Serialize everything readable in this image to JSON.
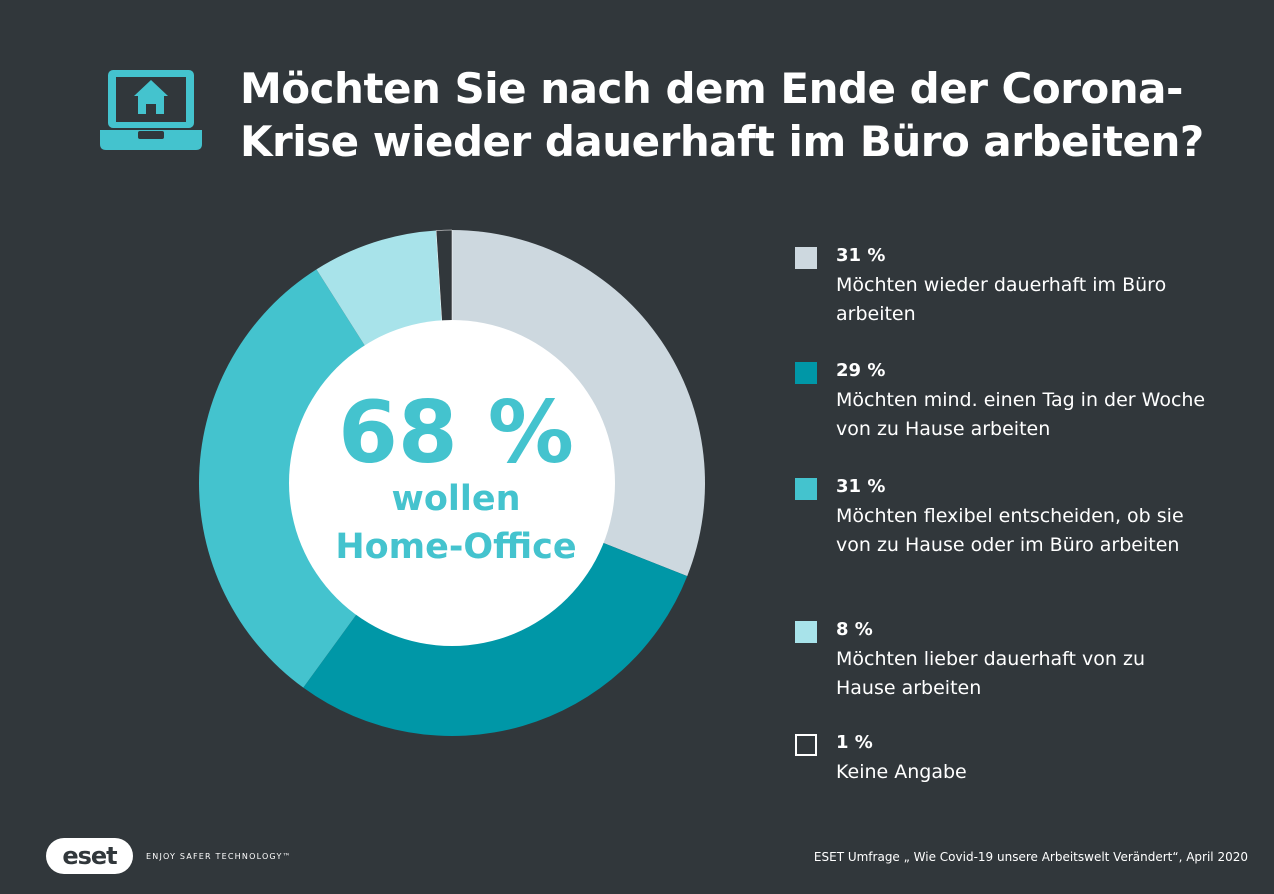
{
  "header": {
    "title_line1": "Möchten Sie nach dem Ende der Corona-",
    "title_line2": "Krise wieder dauerhaft im Büro arbeiten?",
    "icon": "laptop-home-icon"
  },
  "center": {
    "value": "68 %",
    "line1": "wollen",
    "line2": "Home-Office"
  },
  "colors": {
    "background": "#31373b",
    "accent": "#44c3ce"
  },
  "chart_data": {
    "type": "pie",
    "title": "Möchten Sie nach dem Ende der Corona-Krise wieder dauerhaft im Büro arbeiten?",
    "legend_position": "right",
    "slices": [
      {
        "pct_label": "31 %",
        "value": 31,
        "label": "Möchten wieder dauerhaft im Büro arbeiten",
        "color": "#cdd8df",
        "outline": false
      },
      {
        "pct_label": "29 %",
        "value": 29,
        "label": "Möchten mind. einen Tag in der Woche von zu Hause arbeiten",
        "color": "#0097a7",
        "outline": false
      },
      {
        "pct_label": "31 %",
        "value": 31,
        "label": "Möchten flexibel entscheiden, ob sie von zu Hause oder im Büro arbeiten",
        "color": "#44c3ce",
        "outline": false
      },
      {
        "pct_label": "8 %",
        "value": 8,
        "label": "Möchten lieber dauerhaft von zu Hause arbeiten",
        "color": "#a8e3ea",
        "outline": false
      },
      {
        "pct_label": "1 %",
        "value": 1,
        "label": "Keine Angabe",
        "color": "#31373b",
        "outline": true
      }
    ]
  },
  "footer": {
    "logo_text": "eset",
    "tagline": "ENJOY SAFER TECHNOLOGY™",
    "source": "ESET Umfrage „ Wie Covid-19 unsere Arbeitswelt Verändert“, April 2020"
  }
}
